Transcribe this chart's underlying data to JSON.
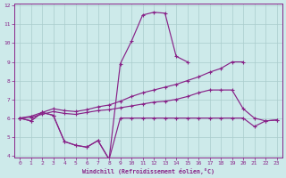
{
  "xlabel": "Windchill (Refroidissement éolien,°C)",
  "bg_color": "#cdeaea",
  "grid_color": "#aacccc",
  "line_color": "#882288",
  "x": [
    0,
    1,
    2,
    3,
    4,
    5,
    6,
    7,
    8,
    9,
    10,
    11,
    12,
    13,
    14,
    15,
    16,
    17,
    18,
    19,
    20,
    21,
    22,
    23
  ],
  "line1": [
    6.0,
    5.85,
    6.3,
    6.15,
    4.75,
    4.55,
    4.45,
    4.8,
    3.8,
    6.0,
    6.0,
    6.0,
    6.0,
    6.0,
    6.0,
    6.0,
    6.0,
    6.0,
    6.0,
    6.0,
    6.0,
    5.55,
    5.85,
    5.9
  ],
  "line2": [
    6.0,
    5.85,
    6.3,
    6.15,
    4.75,
    4.55,
    4.45,
    4.8,
    3.8,
    8.9,
    10.1,
    11.5,
    11.65,
    11.6,
    9.3,
    9.0,
    null,
    null,
    null,
    null,
    null,
    null,
    null,
    null
  ],
  "line3": [
    6.0,
    6.1,
    6.3,
    6.5,
    6.4,
    6.35,
    6.45,
    6.6,
    6.7,
    6.9,
    7.15,
    7.35,
    7.5,
    7.65,
    7.8,
    8.0,
    8.2,
    8.45,
    8.65,
    9.0,
    9.0,
    null,
    null,
    null
  ],
  "line4": [
    6.0,
    6.05,
    6.2,
    6.35,
    6.25,
    6.2,
    6.3,
    6.4,
    6.45,
    6.55,
    6.65,
    6.75,
    6.85,
    6.9,
    7.0,
    7.15,
    7.35,
    7.5,
    7.5,
    7.5,
    6.5,
    6.0,
    5.85,
    5.9
  ],
  "ylim": [
    4,
    12
  ],
  "xlim": [
    -0.5,
    23.5
  ],
  "yticks": [
    4,
    5,
    6,
    7,
    8,
    9,
    10,
    11,
    12
  ],
  "xticks": [
    0,
    1,
    2,
    3,
    4,
    5,
    6,
    7,
    8,
    9,
    10,
    11,
    12,
    13,
    14,
    15,
    16,
    17,
    18,
    19,
    20,
    21,
    22,
    23
  ]
}
